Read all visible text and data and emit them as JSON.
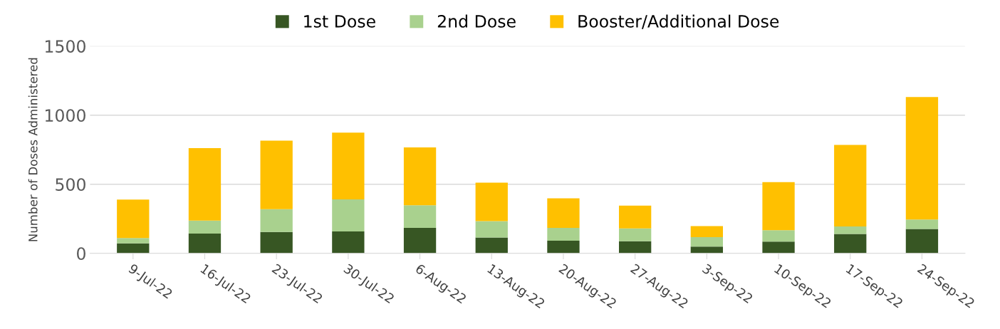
{
  "chart_data": {
    "type": "bar",
    "stacked": true,
    "ylabel": "Number of Doses Administered",
    "categories": [
      "9-Jul-22",
      "16-Jul-22",
      "23-Jul-22",
      "30-Jul-22",
      "6-Aug-22",
      "13-Aug-22",
      "20-Aug-22",
      "27-Aug-22",
      "3-Sep-22",
      "10-Sep-22",
      "17-Sep-22",
      "24-Sep-22"
    ],
    "series": [
      {
        "name": "1st Dose",
        "color": "#375623",
        "values": [
          72,
          143,
          154,
          159,
          184,
          114,
          92,
          87,
          49,
          85,
          141,
          177
        ]
      },
      {
        "name": "2nd Dose",
        "color": "#a9d18e",
        "values": [
          39,
          94,
          166,
          231,
          164,
          119,
          92,
          93,
          68,
          82,
          53,
          68
        ]
      },
      {
        "name": "Booster/Additional Dose",
        "color": "#ffc000",
        "values": [
          278,
          525,
          495,
          483,
          419,
          279,
          214,
          165,
          80,
          348,
          590,
          886
        ]
      }
    ],
    "ylim": [
      0,
      1500
    ],
    "yticks": [
      0,
      500,
      1000,
      1500
    ],
    "grid": "y",
    "legend": "top"
  }
}
